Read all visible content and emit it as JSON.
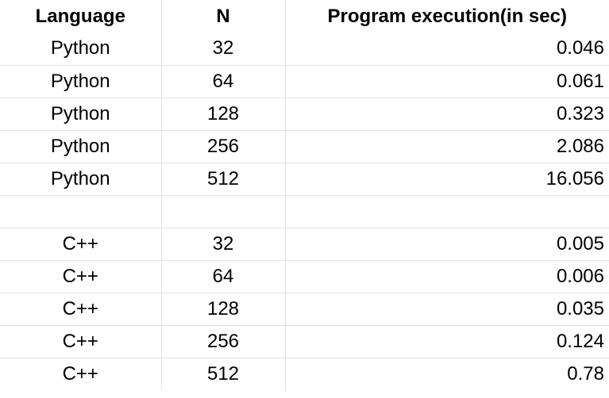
{
  "table": {
    "headers": {
      "language": "Language",
      "n": "N",
      "time": "Program execution(in sec)"
    },
    "rows": [
      {
        "language": "Python",
        "n": "32",
        "time": "0.046"
      },
      {
        "language": "Python",
        "n": "64",
        "time": "0.061"
      },
      {
        "language": "Python",
        "n": "128",
        "time": "0.323"
      },
      {
        "language": "Python",
        "n": "256",
        "time": "2.086"
      },
      {
        "language": "Python",
        "n": "512",
        "time": "16.056"
      },
      {
        "language": "",
        "n": "",
        "time": ""
      },
      {
        "language": "C++",
        "n": "32",
        "time": "0.005"
      },
      {
        "language": "C++",
        "n": "64",
        "time": "0.006"
      },
      {
        "language": "C++",
        "n": "128",
        "time": "0.035"
      },
      {
        "language": "C++",
        "n": "256",
        "time": "0.124"
      },
      {
        "language": "C++",
        "n": "512",
        "time": "0.78"
      }
    ]
  }
}
